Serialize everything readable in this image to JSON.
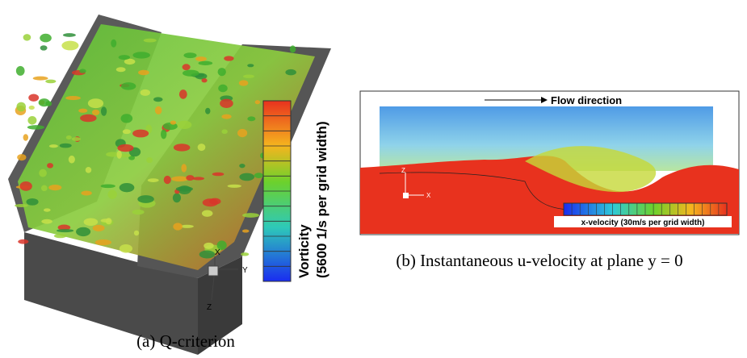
{
  "panel_a": {
    "caption": "(a) Q-criterion",
    "colorbar_title": "Vorticity",
    "colorbar_units": "(5600 1/s per grid width)",
    "axes": [
      "X",
      "Y",
      "Z"
    ]
  },
  "panel_b": {
    "caption": "(b) Instantaneous u-velocity at plane y = 0",
    "flow_label": "Flow direction",
    "axes": [
      "Z",
      "X"
    ],
    "colorbar_label": "x-velocity (30m/s per grid width)"
  }
}
